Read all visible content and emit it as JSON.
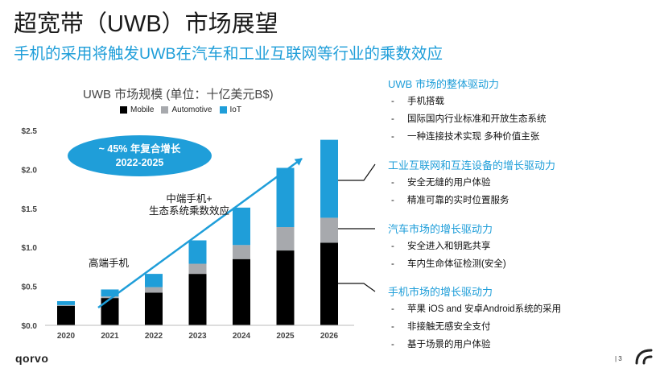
{
  "title": "超宽带（UWB）市场展望",
  "subtitle": "手机的采用将触发UWB在汽车和工业互联网等行业的乘数效应",
  "chart_data": {
    "type": "bar",
    "stacked": true,
    "title": "UWB 市场规模 (单位：十亿美元B$)",
    "categories": [
      "2020",
      "2021",
      "2022",
      "2023",
      "2024",
      "2025",
      "2026"
    ],
    "series": [
      {
        "name": "Mobile",
        "color": "#000000",
        "values": [
          0.25,
          0.35,
          0.42,
          0.66,
          0.85,
          0.96,
          1.06
        ]
      },
      {
        "name": "Automotive",
        "color": "#a7a9ad",
        "values": [
          0.01,
          0.02,
          0.07,
          0.13,
          0.18,
          0.3,
          0.32
        ]
      },
      {
        "name": "IoT",
        "color": "#1f9ed9",
        "values": [
          0.05,
          0.09,
          0.17,
          0.3,
          0.48,
          0.76,
          1.0
        ]
      }
    ],
    "y_ticks": [
      "$0.0",
      "$0.5",
      "$1.0",
      "$1.5",
      "$2.0",
      "$2.5"
    ],
    "ylim": [
      0,
      2.5
    ],
    "gridlines": false,
    "legend_position": "top",
    "annotations": {
      "cagr_line1": "~ 45% 年复合增长",
      "cagr_line2": "2022-2025",
      "mid_label_line1": "中端手机+",
      "mid_label_line2": "生态系统乘数效应",
      "high_label": "高端手机"
    }
  },
  "right_panel": {
    "s1_head": "UWB 市场的整体驱动力",
    "s1_items": [
      "手机搭载",
      "国际国内行业标准和开放生态系统",
      "一种连接技术实现 多种价值主张"
    ],
    "s2_head": "工业互联网和互连设备的增长驱动力",
    "s2_items": [
      "安全无缝的用户体验",
      "精准可靠的实时位置服务"
    ],
    "s3_head": "汽车市场的增长驱动力",
    "s3_items": [
      "安全进入和钥匙共享",
      "车内生命体征检测(安全)"
    ],
    "s4_head": "手机市场的增长驱动力",
    "s4_items": [
      "苹果 iOS and 安卓Android系统的采用",
      "非接触无感安全支付",
      "基于场景的用户体验"
    ]
  },
  "footer": {
    "logo": "qorvo",
    "page": "| 3"
  }
}
